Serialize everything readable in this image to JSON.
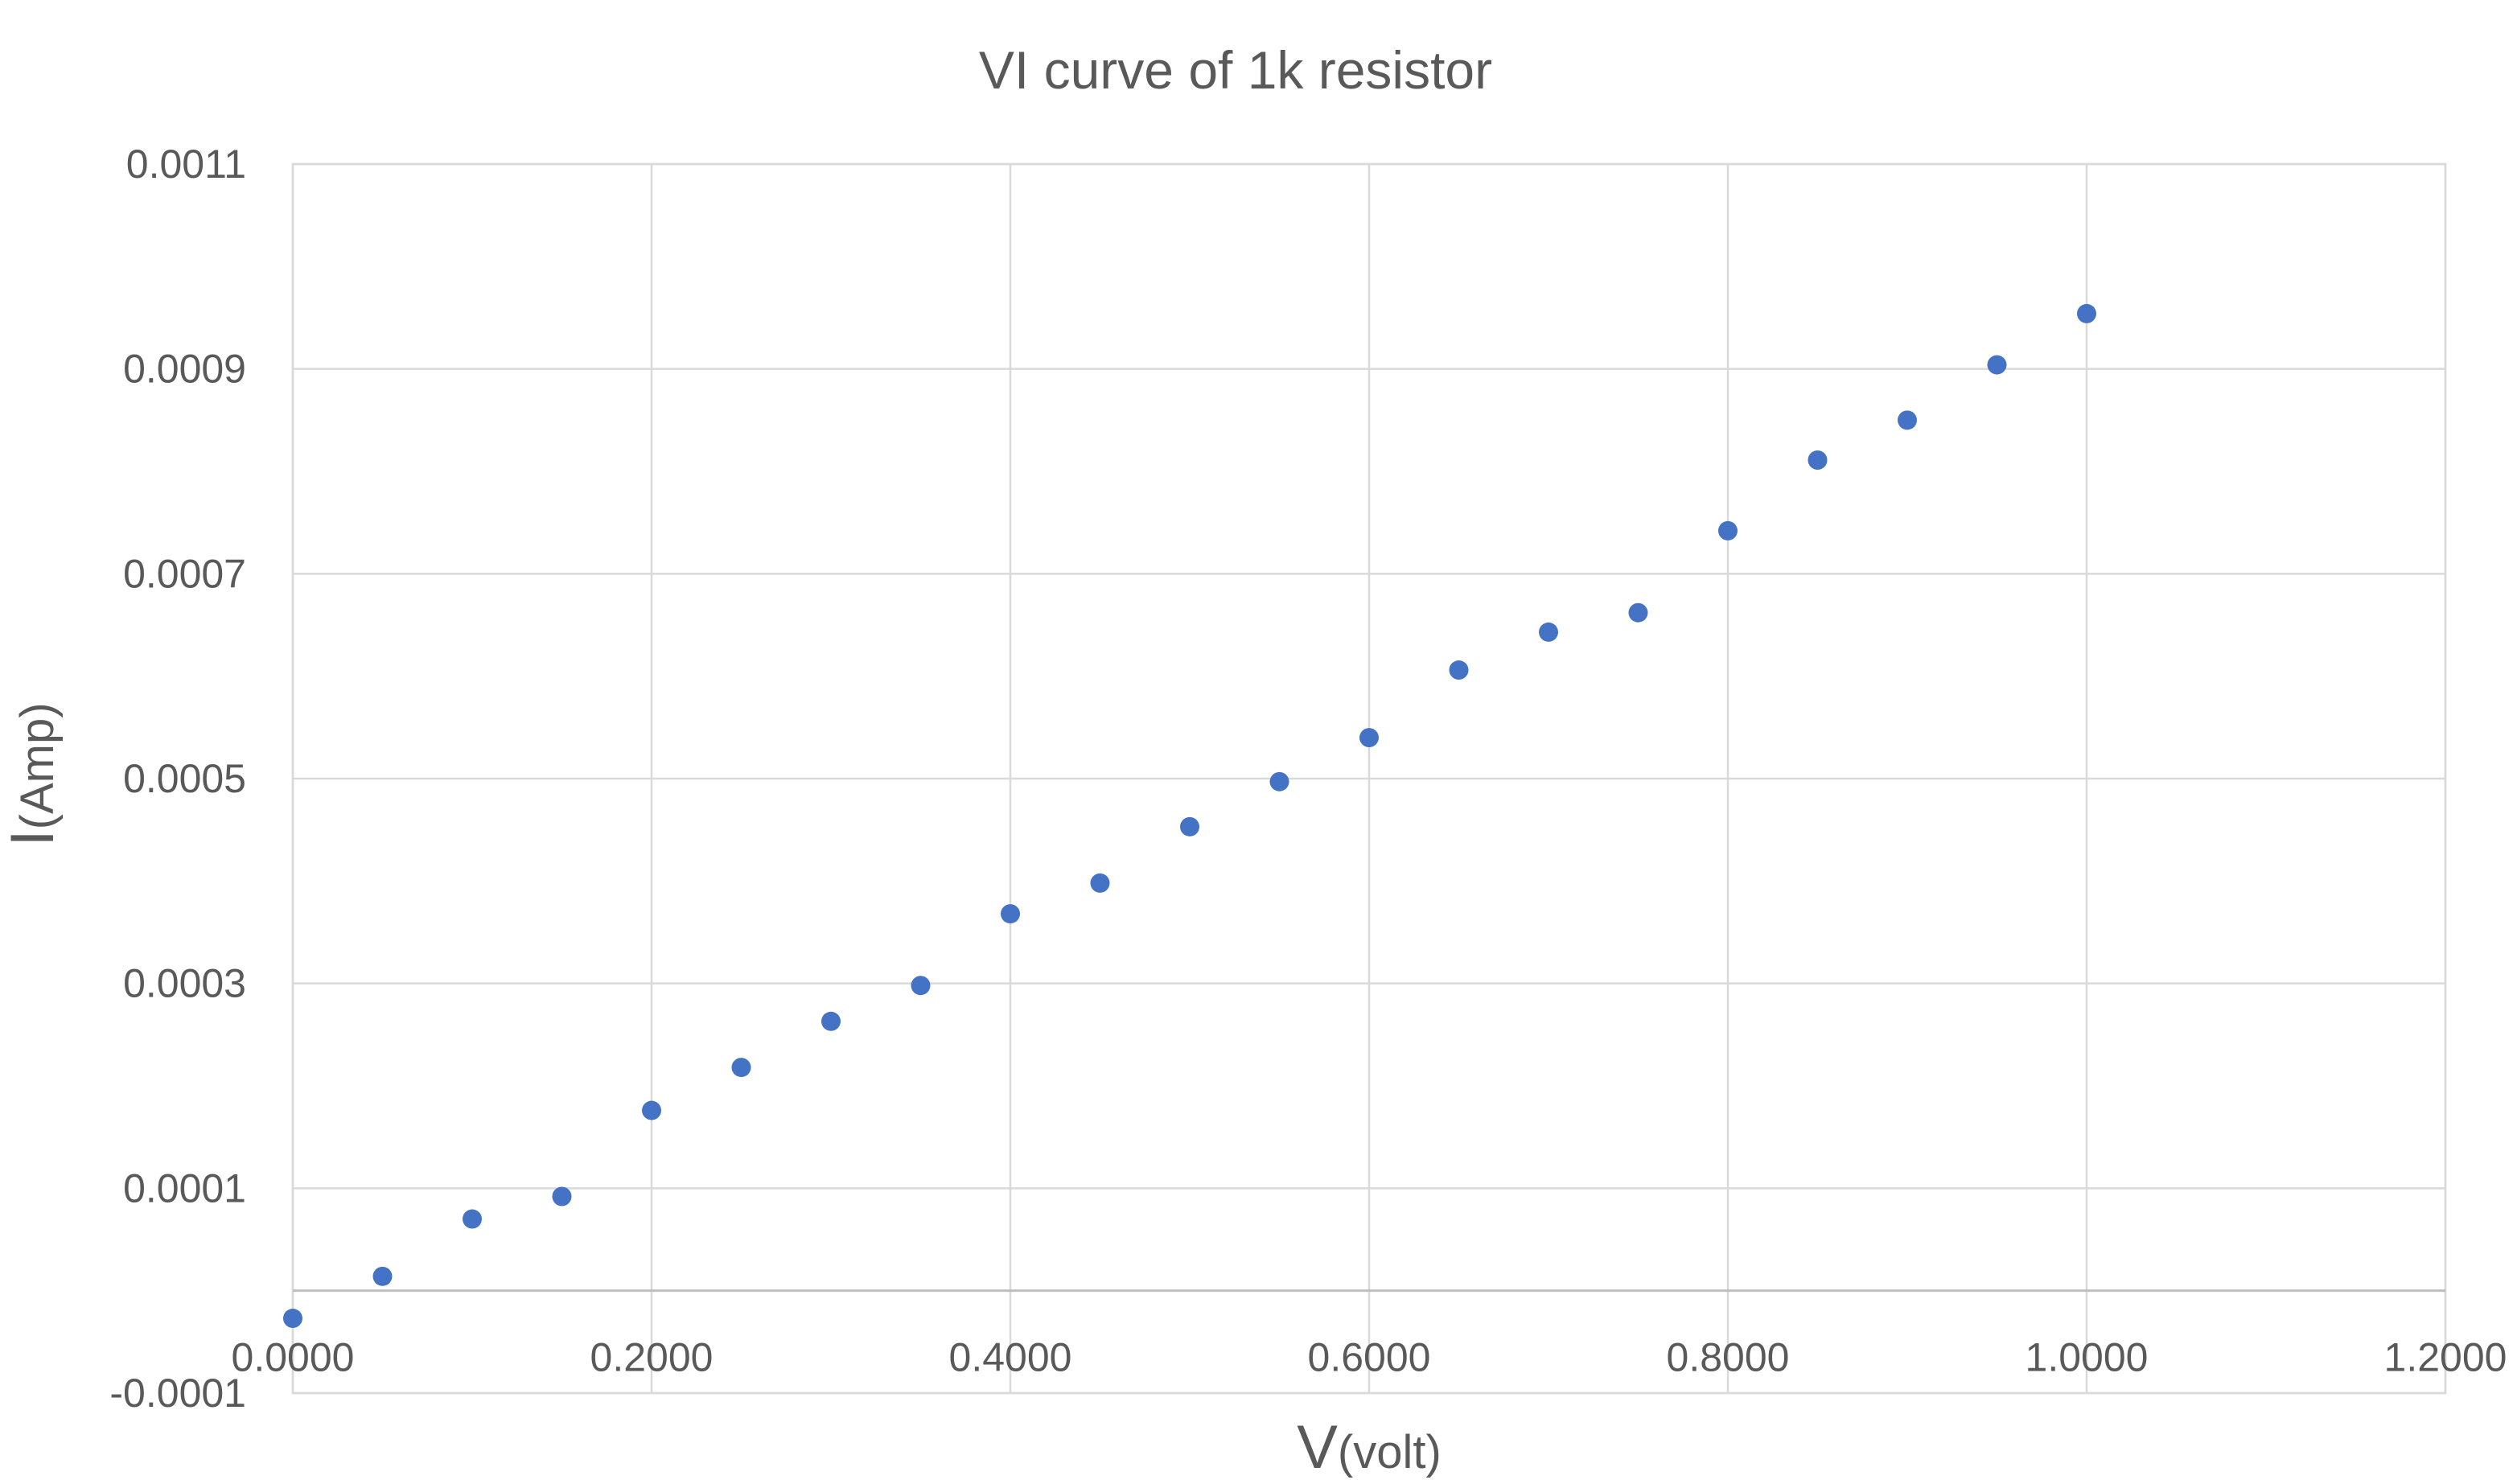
{
  "chart_data": {
    "type": "scatter",
    "title": "VI curve of 1k resistor",
    "xlabel": {
      "main": "V",
      "sub": "(volt)"
    },
    "ylabel": {
      "main": "I",
      "sub": "(Amp)"
    },
    "xlim": [
      0,
      1.2
    ],
    "ylim": [
      -0.0001,
      0.0011
    ],
    "x_ticks": [
      0,
      0.2,
      0.4,
      0.6,
      0.8,
      1.0,
      1.2
    ],
    "x_tick_labels": [
      "0.0000",
      "0.2000",
      "0.4000",
      "0.6000",
      "0.8000",
      "1.0000",
      "1.2000"
    ],
    "y_ticks": [
      -0.0001,
      0.0001,
      0.0003,
      0.0005,
      0.0007,
      0.0009,
      0.0011
    ],
    "y_tick_labels": [
      "-0.0001",
      "0.0001",
      "0.0003",
      "0.0005",
      "0.0007",
      "0.0009",
      "0.0011"
    ],
    "grid": true,
    "legend": "none",
    "marker_color": "#4472c4",
    "series": [
      {
        "x": [
          0.0,
          0.05,
          0.1,
          0.15,
          0.2,
          0.25,
          0.3,
          0.35,
          0.4,
          0.45,
          0.5,
          0.55,
          0.6,
          0.65,
          0.7,
          0.75,
          0.8,
          0.85,
          0.9,
          0.95,
          1.0
        ],
        "y": [
          -2.7e-05,
          1.4e-05,
          7e-05,
          9.2e-05,
          0.000176,
          0.000218,
          0.000263,
          0.000298,
          0.000368,
          0.000398,
          0.000453,
          0.000497,
          0.00054,
          0.000606,
          0.000643,
          0.000662,
          0.000742,
          0.000811,
          0.00085,
          0.000904,
          0.000954
        ]
      }
    ]
  }
}
